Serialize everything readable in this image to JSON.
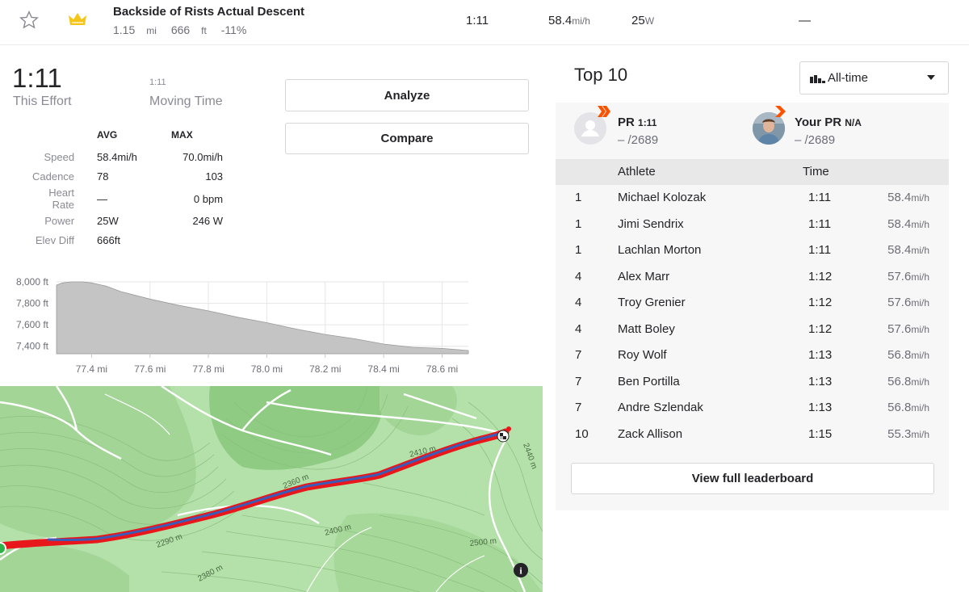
{
  "segment": {
    "title": "Backside of Rists Actual Descent",
    "distance": "1.15",
    "distance_unit": "mi",
    "elevation": "666",
    "elevation_unit": "ft",
    "grade": "-11%",
    "time": "1:11",
    "speed": "58.4",
    "speed_unit": "mi/h",
    "power": "25",
    "power_unit": "W",
    "extra": "—"
  },
  "effort": {
    "time": "1:11",
    "time_label": "This Effort",
    "moving_time": "1:11",
    "moving_label": "Moving Time",
    "analyze_label": "Analyze",
    "compare_label": "Compare",
    "headers": {
      "avg": "AVG",
      "max": "MAX"
    },
    "rows": [
      {
        "label": "Speed",
        "avg": "58.4mi/h",
        "max": "70.0mi/h"
      },
      {
        "label": "Cadence",
        "avg": "78",
        "max": "103"
      },
      {
        "label": "Heart Rate",
        "avg": "—",
        "max": "0 bpm"
      },
      {
        "label": "Power",
        "avg": "25W",
        "max": "246 W"
      },
      {
        "label": "Elev Diff",
        "avg": "666ft",
        "max": ""
      }
    ]
  },
  "chart_data": {
    "type": "area",
    "title": "",
    "xlabel": "",
    "ylabel": "",
    "x_ticks": [
      "77.4 mi",
      "77.6 mi",
      "77.8 mi",
      "78.0 mi",
      "78.2 mi",
      "78.4 mi",
      "78.6 mi"
    ],
    "y_ticks": [
      "8,000 ft",
      "7,800 ft",
      "7,600 ft",
      "7,400 ft"
    ],
    "xlim": [
      77.28,
      78.69
    ],
    "ylim": [
      7330,
      8000
    ],
    "x": [
      77.28,
      77.3,
      77.33,
      77.37,
      77.4,
      77.45,
      77.5,
      77.6,
      77.7,
      77.8,
      77.9,
      78.0,
      78.1,
      78.2,
      78.3,
      78.4,
      78.5,
      78.6,
      78.69
    ],
    "y": [
      7970,
      7990,
      8000,
      8000,
      7990,
      7960,
      7910,
      7840,
      7780,
      7730,
      7670,
      7620,
      7560,
      7510,
      7470,
      7420,
      7390,
      7380,
      7360
    ],
    "color": "#c4c4c4",
    "grid": true
  },
  "map": {
    "contour_labels": [
      "2410 m",
      "2360 m",
      "2290 m",
      "2400 m",
      "2380 m",
      "2500 m",
      "2440 m"
    ],
    "route_color": "#e8171c",
    "track_color": "#3b5bb8",
    "info_icon": "info-icon"
  },
  "leaderboard": {
    "title": "Top 10",
    "filter": "All-time",
    "pr_label": "PR",
    "pr_value": "1:11",
    "pr_rank": "– /2689",
    "your_pr_label": "Your PR",
    "your_pr_value": "N/A",
    "your_pr_rank": "– /2689",
    "col_athlete": "Athlete",
    "col_time": "Time",
    "rows": [
      {
        "pos": "1",
        "name": "Michael Kolozak",
        "time": "1:11",
        "speed": "58.4",
        "unit": "mi/h"
      },
      {
        "pos": "1",
        "name": "Jimi Sendrix",
        "time": "1:11",
        "speed": "58.4",
        "unit": "mi/h"
      },
      {
        "pos": "1",
        "name": "Lachlan Morton",
        "time": "1:11",
        "speed": "58.4",
        "unit": "mi/h"
      },
      {
        "pos": "4",
        "name": "Alex Marr",
        "time": "1:12",
        "speed": "57.6",
        "unit": "mi/h"
      },
      {
        "pos": "4",
        "name": "Troy Grenier",
        "time": "1:12",
        "speed": "57.6",
        "unit": "mi/h"
      },
      {
        "pos": "4",
        "name": "Matt Boley",
        "time": "1:12",
        "speed": "57.6",
        "unit": "mi/h"
      },
      {
        "pos": "7",
        "name": "Roy Wolf",
        "time": "1:13",
        "speed": "56.8",
        "unit": "mi/h"
      },
      {
        "pos": "7",
        "name": "Ben Portilla",
        "time": "1:13",
        "speed": "56.8",
        "unit": "mi/h"
      },
      {
        "pos": "7",
        "name": "Andre Szlendak",
        "time": "1:13",
        "speed": "56.8",
        "unit": "mi/h"
      },
      {
        "pos": "10",
        "name": "Zack Allison",
        "time": "1:15",
        "speed": "55.3",
        "unit": "mi/h"
      }
    ],
    "view_full_label": "View full leaderboard"
  },
  "colors": {
    "accent": "#fc5200",
    "crown": "#f5c518",
    "route": "#e8171c"
  }
}
